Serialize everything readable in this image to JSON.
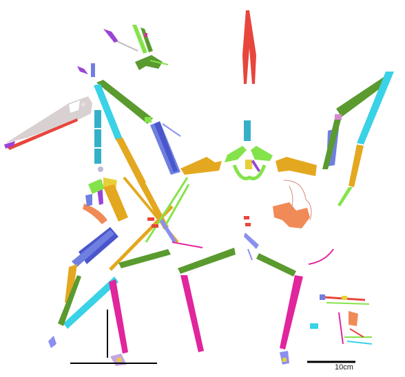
{
  "figure": {
    "scale_bar_label": "10cm"
  },
  "colors": {
    "skull": "#d9d1d1",
    "jaw_red": "#e8453c",
    "purple": "#9b44d6",
    "vertebra_teal": "#35b0c8",
    "ulna_blue": "#6f7fe0",
    "deep_blue": "#4a56cc",
    "humerus_orange": "#e3a81f",
    "olive_green": "#5a9a2f",
    "light_green": "#84e34a",
    "magenta": "#e0259d",
    "cyan": "#39d2e6",
    "salmon": "#f08b57",
    "lavender": "#8a8ff0",
    "yellow": "#e6cf3a",
    "outline": "#d48b7a",
    "scale_black": "#000000"
  }
}
